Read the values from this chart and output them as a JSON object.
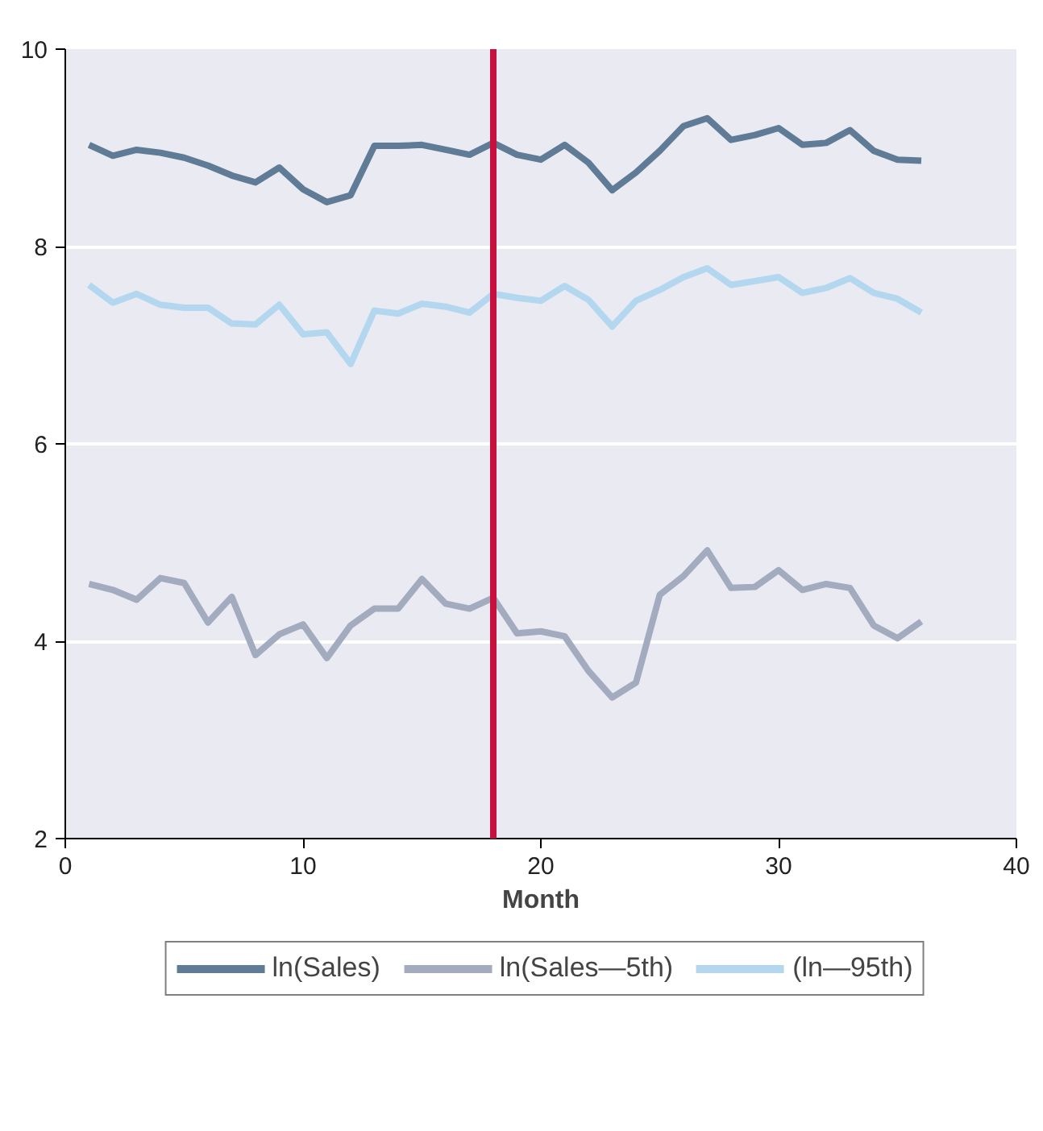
{
  "chart_data": {
    "type": "line",
    "xlabel": "Month",
    "xlim": [
      0,
      40
    ],
    "xticks": [
      0,
      10,
      20,
      30,
      40
    ],
    "ylim": [
      2,
      10
    ],
    "yticks": [
      2,
      4,
      6,
      8,
      10
    ],
    "grid": "y",
    "legend": "bottom",
    "marker": "none",
    "line_style": "solid",
    "x": [
      1,
      2,
      3,
      4,
      5,
      6,
      7,
      8,
      9,
      10,
      11,
      12,
      13,
      14,
      15,
      16,
      17,
      18,
      19,
      20,
      21,
      22,
      23,
      24,
      25,
      26,
      27,
      28,
      29,
      30,
      31,
      32,
      33,
      34,
      35,
      36
    ],
    "series": [
      {
        "name": "ln(Sales)",
        "color": "#5f7b96",
        "values": [
          9.03,
          8.92,
          8.98,
          8.95,
          8.9,
          8.82,
          8.72,
          8.65,
          8.8,
          8.58,
          8.45,
          8.52,
          9.02,
          9.02,
          9.03,
          8.98,
          8.93,
          9.05,
          8.93,
          8.88,
          9.03,
          8.85,
          8.57,
          8.75,
          8.97,
          9.22,
          9.3,
          9.08,
          9.13,
          9.2,
          9.03,
          9.05,
          9.18,
          8.97,
          8.88,
          8.87
        ]
      },
      {
        "name": "ln(Sales—5th)",
        "color": "#a3abbf",
        "values": [
          4.58,
          4.52,
          4.42,
          4.64,
          4.59,
          4.19,
          4.45,
          3.86,
          4.07,
          4.17,
          3.83,
          4.16,
          4.33,
          4.33,
          4.63,
          4.38,
          4.33,
          4.44,
          4.08,
          4.1,
          4.05,
          3.7,
          3.43,
          3.58,
          4.47,
          4.66,
          4.92,
          4.54,
          4.55,
          4.72,
          4.52,
          4.58,
          4.54,
          4.16,
          4.03,
          4.2
        ]
      },
      {
        "name": "(ln—95th)",
        "color": "#b3d7ee",
        "values": [
          7.61,
          7.43,
          7.52,
          7.41,
          7.38,
          7.38,
          7.22,
          7.21,
          7.41,
          7.11,
          7.13,
          6.81,
          7.35,
          7.32,
          7.42,
          7.39,
          7.33,
          7.52,
          7.48,
          7.45,
          7.6,
          7.46,
          7.19,
          7.45,
          7.56,
          7.69,
          7.78,
          7.61,
          7.65,
          7.69,
          7.53,
          7.58,
          7.68,
          7.53,
          7.47,
          7.33
        ]
      }
    ],
    "ref_lines": [
      {
        "axis": "x",
        "value": 18,
        "color": "#c8103f",
        "line_style": "solid"
      }
    ]
  }
}
